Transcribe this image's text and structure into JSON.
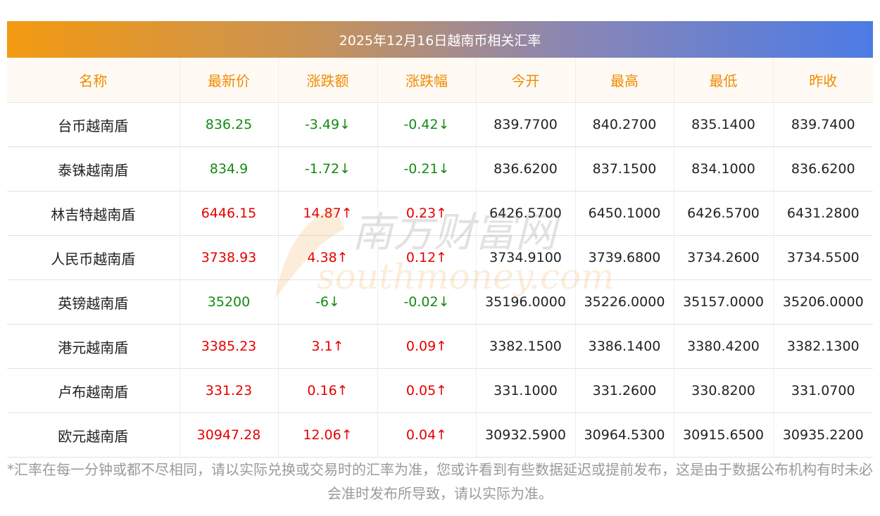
{
  "title": "2025年12月16日越南币相关汇率",
  "headers": [
    "名称",
    "最新价",
    "涨跌额",
    "涨跌幅",
    "今开",
    "最高",
    "最低",
    "昨收"
  ],
  "rows": [
    {
      "name": "台币越南盾",
      "price": "836.25",
      "change": "-3.49↓",
      "pct": "-0.42↓",
      "open": "839.7700",
      "high": "840.2700",
      "low": "835.1400",
      "prev": "839.7400",
      "dir": "down"
    },
    {
      "name": "泰铢越南盾",
      "price": "834.9",
      "change": "-1.72↓",
      "pct": "-0.21↓",
      "open": "836.6200",
      "high": "837.1500",
      "low": "834.1000",
      "prev": "836.6200",
      "dir": "down"
    },
    {
      "name": "林吉特越南盾",
      "price": "6446.15",
      "change": "14.87↑",
      "pct": "0.23↑",
      "open": "6426.5700",
      "high": "6450.1000",
      "low": "6426.5700",
      "prev": "6431.2800",
      "dir": "up"
    },
    {
      "name": "人民币越南盾",
      "price": "3738.93",
      "change": "4.38↑",
      "pct": "0.12↑",
      "open": "3734.9100",
      "high": "3739.6800",
      "low": "3734.2600",
      "prev": "3734.5500",
      "dir": "up"
    },
    {
      "name": "英镑越南盾",
      "price": "35200",
      "change": "-6↓",
      "pct": "-0.02↓",
      "open": "35196.0000",
      "high": "35226.0000",
      "low": "35157.0000",
      "prev": "35206.0000",
      "dir": "down"
    },
    {
      "name": "港元越南盾",
      "price": "3385.23",
      "change": "3.1↑",
      "pct": "0.09↑",
      "open": "3382.1500",
      "high": "3386.1400",
      "low": "3380.4200",
      "prev": "3382.1300",
      "dir": "up"
    },
    {
      "name": "卢布越南盾",
      "price": "331.23",
      "change": "0.16↑",
      "pct": "0.05↑",
      "open": "331.1000",
      "high": "331.2600",
      "low": "330.8200",
      "prev": "331.0700",
      "dir": "up"
    },
    {
      "name": "欧元越南盾",
      "price": "30947.28",
      "change": "12.06↑",
      "pct": "0.04↑",
      "open": "30932.5900",
      "high": "30964.5300",
      "low": "30915.6500",
      "prev": "30935.2200",
      "dir": "up"
    }
  ],
  "watermark": {
    "cn": "南方财富网",
    "en": "southmoney.com"
  },
  "note": "*汇率在每一分钟或都不尽相同，请以实际兑换或交易时的汇率为准，您或许看到有些数据延迟或提前发布，这是由于数据公布机构有时未必会准时发布所导致，请以实际为准。",
  "colors": {
    "up": "#e60000",
    "down": "#148a14",
    "header_text": "#f08a00",
    "header_bg": "#fffaf4"
  }
}
